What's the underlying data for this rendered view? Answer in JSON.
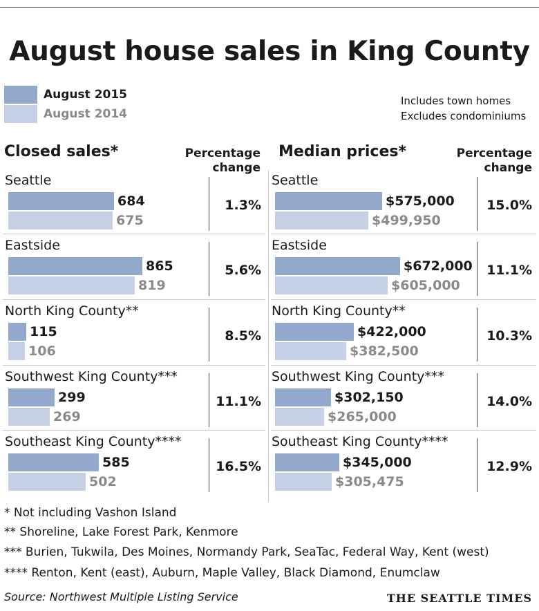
{
  "title": "August house sales in King County",
  "legend": [
    {
      "label": "August 2015",
      "color": "#93a9cc"
    },
    {
      "label": "August 2014",
      "color": "#c6d0e5"
    }
  ],
  "notes": [
    "Includes town homes",
    "Excludes condominiums"
  ],
  "pct_header": [
    "Percentage",
    "change"
  ],
  "chart_data": [
    {
      "type": "bar",
      "title": "Closed sales*",
      "categories": [
        "Seattle",
        "Eastside",
        "North King County**",
        "Southwest King County***",
        "Southeast King County****"
      ],
      "series": [
        {
          "name": "August 2015",
          "values": [
            684,
            865,
            115,
            299,
            585
          ],
          "labels": [
            "684",
            "865",
            "115",
            "299",
            "585"
          ]
        },
        {
          "name": "August 2014",
          "values": [
            675,
            819,
            106,
            269,
            502
          ],
          "labels": [
            "675",
            "819",
            "106",
            "269",
            "502"
          ]
        }
      ],
      "percentage_change": [
        "1.3%",
        "5.6%",
        "8.5%",
        "11.1%",
        "16.5%"
      ],
      "xlim": [
        0,
        1000
      ]
    },
    {
      "type": "bar",
      "title": "Median prices*",
      "categories": [
        "Seattle",
        "Eastside",
        "North King County**",
        "Southwest King County***",
        "Southeast King County****"
      ],
      "series": [
        {
          "name": "August 2015",
          "values": [
            575000,
            672000,
            422000,
            302150,
            345000
          ],
          "labels": [
            "$575,000",
            "$672,000",
            "$422,000",
            "$302,150",
            "$345,000"
          ]
        },
        {
          "name": "August 2014",
          "values": [
            499950,
            605000,
            382500,
            265000,
            305475
          ],
          "labels": [
            "$499,950",
            "$605,000",
            "$382,500",
            "$265,000",
            "$305,475"
          ]
        }
      ],
      "percentage_change": [
        "15.0%",
        "11.1%",
        "10.3%",
        "14.0%",
        "12.9%"
      ],
      "xlim": [
        0,
        1000000
      ]
    }
  ],
  "footnotes": [
    "* Not including Vashon Island",
    "** Shoreline, Lake Forest Park, Kenmore",
    "*** Burien, Tukwila, Des Moines, Normandy Park, SeaTac, Federal Way, Kent (west)",
    "**** Renton, Kent (east), Auburn, Maple Valley, Black Diamond, Enumclaw"
  ],
  "source": "Source: Northwest Multiple Listing Service",
  "brand": "THE SEATTLE TIMES"
}
